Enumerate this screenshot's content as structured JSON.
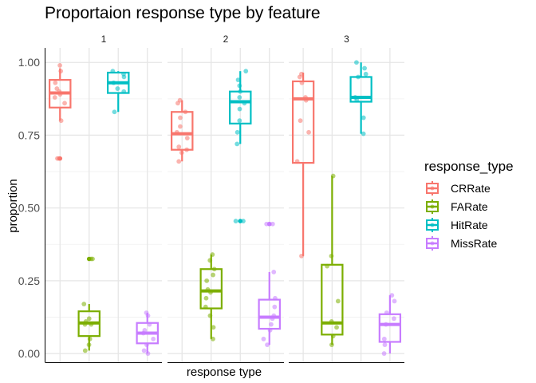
{
  "chart_data": {
    "type": "boxplot",
    "title": "Proportaion response type by feature",
    "xlabel": "response type",
    "ylabel": "proportion",
    "ylim": [
      -0.03,
      1.05
    ],
    "yticks": [
      0.0,
      0.25,
      0.5,
      0.75,
      1.0
    ],
    "ytick_labels": [
      "0.00",
      "0.25",
      "0.50",
      "0.75",
      "1.00"
    ],
    "grid": true,
    "legend": {
      "title": "response_type",
      "position": "right",
      "entries": [
        "CRRate",
        "FARate",
        "HitRate",
        "MissRate"
      ]
    },
    "categories": [
      "CRRate",
      "FARate",
      "HitRate",
      "MissRate"
    ],
    "colors": {
      "CRRate": "#F8766D",
      "FARate": "#7CAE00",
      "HitRate": "#00BFC4",
      "MissRate": "#C77CFF"
    },
    "panels": [
      {
        "label": "1",
        "boxes": [
          {
            "category": "CRRate",
            "min": 0.8,
            "q1": 0.845,
            "median": 0.895,
            "q3": 0.94,
            "max": 0.98,
            "outliers": [
              0.67
            ]
          },
          {
            "category": "FARate",
            "min": 0.01,
            "q1": 0.06,
            "median": 0.105,
            "q3": 0.145,
            "max": 0.17,
            "outliers": [
              0.325
            ]
          },
          {
            "category": "HitRate",
            "min": 0.83,
            "q1": 0.895,
            "median": 0.93,
            "q3": 0.965,
            "max": 0.97,
            "outliers": []
          },
          {
            "category": "MissRate",
            "min": 0.0,
            "q1": 0.035,
            "median": 0.07,
            "q3": 0.105,
            "max": 0.14,
            "outliers": []
          }
        ],
        "points": {
          "CRRate": [
            0.99,
            0.97,
            0.93,
            0.91,
            0.9,
            0.89,
            0.88,
            0.86,
            0.8,
            0.67,
            0.67
          ],
          "FARate": [
            0.325,
            0.325,
            0.17,
            0.12,
            0.11,
            0.1,
            0.1,
            0.05,
            0.03,
            0.01
          ],
          "HitRate": [
            0.97,
            0.96,
            0.95,
            0.93,
            0.91,
            0.9,
            0.83
          ],
          "MissRate": [
            0.14,
            0.13,
            0.1,
            0.08,
            0.07,
            0.05,
            0.03,
            0.01,
            0.0
          ]
        }
      },
      {
        "label": "2",
        "boxes": [
          {
            "category": "CRRate",
            "min": 0.66,
            "q1": 0.7,
            "median": 0.755,
            "q3": 0.83,
            "max": 0.87,
            "outliers": []
          },
          {
            "category": "FARate",
            "min": 0.05,
            "q1": 0.155,
            "median": 0.215,
            "q3": 0.29,
            "max": 0.34,
            "outliers": []
          },
          {
            "category": "HitRate",
            "min": 0.72,
            "q1": 0.79,
            "median": 0.865,
            "q3": 0.9,
            "max": 0.97,
            "outliers": [
              0.455
            ]
          },
          {
            "category": "MissRate",
            "min": 0.03,
            "q1": 0.085,
            "median": 0.125,
            "q3": 0.185,
            "max": 0.28,
            "outliers": [
              0.445
            ]
          }
        ],
        "points": {
          "CRRate": [
            0.87,
            0.86,
            0.83,
            0.81,
            0.78,
            0.76,
            0.74,
            0.71,
            0.7,
            0.69,
            0.66
          ],
          "FARate": [
            0.34,
            0.32,
            0.29,
            0.27,
            0.25,
            0.22,
            0.21,
            0.19,
            0.16,
            0.13,
            0.09,
            0.05
          ],
          "HitRate": [
            0.97,
            0.94,
            0.92,
            0.9,
            0.88,
            0.86,
            0.84,
            0.8,
            0.76,
            0.72,
            0.455,
            0.455
          ],
          "MissRate": [
            0.445,
            0.445,
            0.28,
            0.19,
            0.16,
            0.13,
            0.12,
            0.1,
            0.08,
            0.05,
            0.03
          ]
        }
      },
      {
        "label": "3",
        "boxes": [
          {
            "category": "CRRate",
            "min": 0.335,
            "q1": 0.655,
            "median": 0.875,
            "q3": 0.935,
            "max": 0.965,
            "outliers": []
          },
          {
            "category": "FARate",
            "min": 0.03,
            "q1": 0.065,
            "median": 0.105,
            "q3": 0.305,
            "max": 0.61,
            "outliers": []
          },
          {
            "category": "HitRate",
            "min": 0.755,
            "q1": 0.865,
            "median": 0.88,
            "q3": 0.95,
            "max": 1.0,
            "outliers": []
          },
          {
            "category": "MissRate",
            "min": 0.0,
            "q1": 0.04,
            "median": 0.1,
            "q3": 0.135,
            "max": 0.2,
            "outliers": []
          }
        ],
        "points": {
          "CRRate": [
            0.96,
            0.95,
            0.93,
            0.88,
            0.87,
            0.8,
            0.76,
            0.66,
            0.335
          ],
          "FARate": [
            0.61,
            0.335,
            0.3,
            0.18,
            0.11,
            0.09,
            0.06,
            0.03
          ],
          "HitRate": [
            1.0,
            0.98,
            0.96,
            0.95,
            0.88,
            0.87,
            0.81,
            0.755
          ],
          "MissRate": [
            0.2,
            0.18,
            0.14,
            0.12,
            0.1,
            0.05,
            0.03,
            0.0
          ]
        }
      }
    ]
  }
}
